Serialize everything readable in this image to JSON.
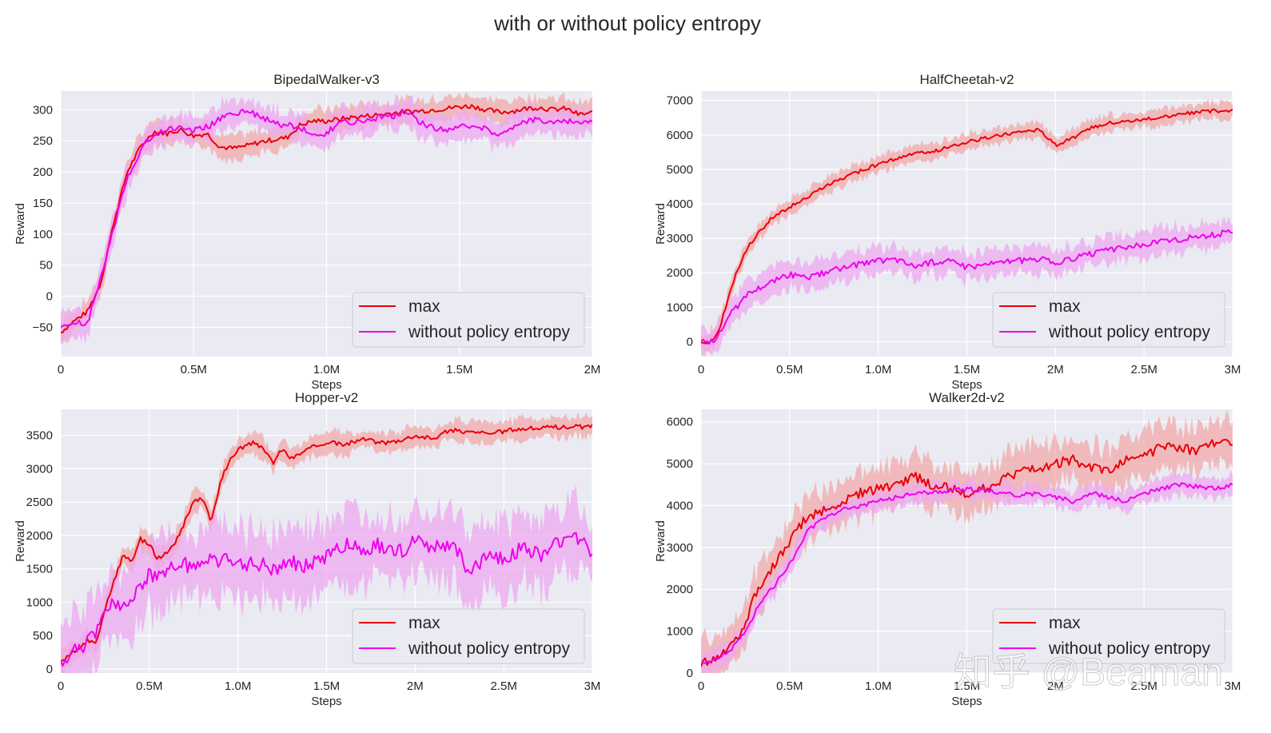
{
  "figure": {
    "suptitle": "with or without policy entropy",
    "watermark": "知乎 @Beaman"
  },
  "colors": {
    "max": "#e8000b",
    "entropy": "#ee00ee",
    "max_band": "#f1a9a9",
    "entropy_band": "#eea8f0",
    "axes_bg": "#eaeaf2",
    "grid": "#ffffff"
  },
  "chart_data": [
    {
      "type": "line",
      "title": "BipedalWalker-v3",
      "xlabel": "Steps",
      "ylabel": "Reward",
      "xlim": [
        0,
        2000000
      ],
      "ylim": [
        -97,
        330
      ],
      "xticks": [
        0,
        500000,
        1000000,
        1500000,
        2000000
      ],
      "xtick_labels": [
        "0",
        "0.5M",
        "1.0M",
        "1.5M",
        "2M"
      ],
      "yticks": [
        -50,
        0,
        50,
        100,
        150,
        200,
        250,
        300
      ],
      "ytick_labels": [
        "−50",
        "0",
        "50",
        "100",
        "150",
        "200",
        "250",
        "300"
      ],
      "legend": {
        "location": "lower right",
        "entries": [
          "max",
          "without policy entropy"
        ]
      },
      "series": [
        {
          "name": "max",
          "color_key": "max",
          "x": [
            0,
            50000,
            100000,
            150000,
            200000,
            250000,
            300000,
            350000,
            400000,
            450000,
            500000,
            550000,
            600000,
            650000,
            700000,
            750000,
            800000,
            850000,
            900000,
            950000,
            1000000,
            1050000,
            1100000,
            1150000,
            1200000,
            1250000,
            1300000,
            1350000,
            1400000,
            1450000,
            1500000,
            1550000,
            1600000,
            1650000,
            1700000,
            1750000,
            1800000,
            1850000,
            1900000,
            1950000,
            2000000
          ],
          "y": [
            -58,
            -40,
            -25,
            20,
            120,
            200,
            240,
            265,
            262,
            268,
            258,
            262,
            240,
            238,
            242,
            248,
            252,
            255,
            275,
            282,
            282,
            285,
            288,
            290,
            292,
            295,
            297,
            298,
            300,
            302,
            305,
            306,
            300,
            296,
            298,
            302,
            304,
            300,
            302,
            292,
            295
          ],
          "spread": 18
        },
        {
          "name": "without policy entropy",
          "color_key": "entropy",
          "x": [
            0,
            50000,
            100000,
            150000,
            200000,
            250000,
            300000,
            350000,
            400000,
            450000,
            500000,
            550000,
            600000,
            650000,
            700000,
            750000,
            800000,
            850000,
            900000,
            950000,
            1000000,
            1050000,
            1100000,
            1150000,
            1200000,
            1250000,
            1300000,
            1350000,
            1400000,
            1450000,
            1500000,
            1550000,
            1600000,
            1650000,
            1700000,
            1750000,
            1800000,
            1850000,
            1900000,
            1950000,
            2000000
          ],
          "y": [
            -52,
            -42,
            -45,
            30,
            110,
            190,
            235,
            262,
            268,
            272,
            268,
            272,
            285,
            295,
            298,
            290,
            278,
            275,
            272,
            258,
            262,
            280,
            278,
            284,
            288,
            290,
            295,
            280,
            272,
            268,
            272,
            275,
            268,
            262,
            272,
            280,
            285,
            280,
            282,
            278,
            283
          ],
          "spread": 22
        }
      ]
    },
    {
      "type": "line",
      "title": "HalfCheetah-v2",
      "xlabel": "Steps",
      "ylabel": "Reward",
      "xlim": [
        0,
        3000000
      ],
      "ylim": [
        -430,
        7270
      ],
      "xticks": [
        0,
        500000,
        1000000,
        1500000,
        2000000,
        2500000,
        3000000
      ],
      "xtick_labels": [
        "0",
        "0.5M",
        "1.0M",
        "1.5M",
        "2M",
        "2.5M",
        "3M"
      ],
      "yticks": [
        0,
        1000,
        2000,
        3000,
        4000,
        5000,
        6000,
        7000
      ],
      "ytick_labels": [
        "0",
        "1000",
        "2000",
        "3000",
        "4000",
        "5000",
        "6000",
        "7000"
      ],
      "legend": {
        "location": "lower right",
        "entries": [
          "max",
          "without policy entropy"
        ]
      },
      "series": [
        {
          "name": "max",
          "color_key": "max",
          "x": [
            0,
            50000,
            100000,
            150000,
            200000,
            250000,
            300000,
            400000,
            500000,
            600000,
            700000,
            800000,
            900000,
            1000000,
            1100000,
            1200000,
            1300000,
            1400000,
            1500000,
            1600000,
            1700000,
            1800000,
            1900000,
            1950000,
            2000000,
            2100000,
            2200000,
            2300000,
            2400000,
            2500000,
            2600000,
            2700000,
            2800000,
            2900000,
            3000000
          ],
          "y": [
            0,
            -50,
            300,
            1200,
            2000,
            2600,
            3000,
            3600,
            3900,
            4200,
            4500,
            4750,
            4950,
            5150,
            5300,
            5450,
            5500,
            5650,
            5800,
            5900,
            6000,
            6100,
            6150,
            5950,
            5700,
            5900,
            6200,
            6350,
            6400,
            6450,
            6500,
            6600,
            6650,
            6700,
            6700
          ],
          "spread": 230
        },
        {
          "name": "without policy entropy",
          "color_key": "entropy",
          "x": [
            0,
            50000,
            100000,
            150000,
            200000,
            250000,
            300000,
            400000,
            500000,
            600000,
            700000,
            800000,
            900000,
            1000000,
            1100000,
            1200000,
            1300000,
            1400000,
            1500000,
            1600000,
            1700000,
            1800000,
            1900000,
            2000000,
            2100000,
            2200000,
            2300000,
            2400000,
            2500000,
            2600000,
            2700000,
            2800000,
            2900000,
            3000000
          ],
          "y": [
            0,
            -50,
            200,
            700,
            1000,
            1300,
            1500,
            1750,
            1950,
            1850,
            2000,
            2150,
            2250,
            2350,
            2400,
            2200,
            2300,
            2350,
            2150,
            2250,
            2300,
            2350,
            2400,
            2300,
            2400,
            2550,
            2650,
            2750,
            2800,
            2900,
            2950,
            3050,
            3100,
            3200
          ],
          "spread": 380
        }
      ]
    },
    {
      "type": "line",
      "title": "Hopper-v2",
      "xlabel": "Steps",
      "ylabel": "Reward",
      "xlim": [
        0,
        3000000
      ],
      "ylim": [
        -60,
        3890
      ],
      "xticks": [
        0,
        500000,
        1000000,
        1500000,
        2000000,
        2500000,
        3000000
      ],
      "xtick_labels": [
        "0",
        "0.5M",
        "1.0M",
        "1.5M",
        "2M",
        "2.5M",
        "3M"
      ],
      "yticks": [
        0,
        500,
        1000,
        1500,
        2000,
        2500,
        3000,
        3500
      ],
      "ytick_labels": [
        "0",
        "500",
        "1000",
        "1500",
        "2000",
        "2500",
        "3000",
        "3500"
      ],
      "legend": {
        "location": "lower right",
        "entries": [
          "max",
          "without policy entropy"
        ]
      },
      "series": [
        {
          "name": "max",
          "color_key": "max",
          "x": [
            0,
            100000,
            150000,
            200000,
            250000,
            300000,
            350000,
            400000,
            450000,
            500000,
            550000,
            600000,
            650000,
            700000,
            750000,
            800000,
            850000,
            900000,
            950000,
            1000000,
            1100000,
            1200000,
            1250000,
            1300000,
            1400000,
            1500000,
            1600000,
            1700000,
            1800000,
            1900000,
            2000000,
            2100000,
            2200000,
            2400000,
            2600000,
            2800000,
            3000000
          ],
          "y": [
            120,
            300,
            420,
            400,
            900,
            1300,
            1700,
            1600,
            1950,
            1850,
            1650,
            1750,
            1900,
            2200,
            2500,
            2550,
            2200,
            2800,
            3100,
            3300,
            3400,
            3100,
            3300,
            3150,
            3300,
            3400,
            3350,
            3450,
            3380,
            3420,
            3500,
            3450,
            3580,
            3520,
            3600,
            3620,
            3630
          ],
          "spread": 150
        },
        {
          "name": "without policy entropy",
          "color_key": "entropy",
          "x": [
            0,
            100000,
            200000,
            250000,
            300000,
            350000,
            400000,
            500000,
            600000,
            700000,
            800000,
            900000,
            1000000,
            1100000,
            1200000,
            1300000,
            1400000,
            1500000,
            1600000,
            1700000,
            1800000,
            1900000,
            2000000,
            2100000,
            2200000,
            2250000,
            2300000,
            2400000,
            2500000,
            2600000,
            2700000,
            2800000,
            2900000,
            3000000
          ],
          "y": [
            120,
            300,
            500,
            900,
            1050,
            900,
            1100,
            1400,
            1500,
            1550,
            1600,
            1650,
            1550,
            1600,
            1500,
            1600,
            1550,
            1700,
            1850,
            1800,
            1850,
            1750,
            1900,
            1800,
            1850,
            1700,
            1400,
            1700,
            1650,
            1800,
            1700,
            1900,
            2000,
            1750
          ],
          "spread": 520
        }
      ]
    },
    {
      "type": "line",
      "title": "Walker2d-v2",
      "xlabel": "Steps",
      "ylabel": "Reward",
      "xlim": [
        0,
        3000000
      ],
      "ylim": [
        0,
        6300
      ],
      "xticks": [
        0,
        500000,
        1000000,
        1500000,
        2000000,
        2500000,
        3000000
      ],
      "xtick_labels": [
        "0",
        "0.5M",
        "1.0M",
        "1.5M",
        "2M",
        "2.5M",
        "3M"
      ],
      "yticks": [
        0,
        1000,
        2000,
        3000,
        4000,
        5000,
        6000
      ],
      "ytick_labels": [
        "0",
        "1000",
        "2000",
        "3000",
        "4000",
        "5000",
        "6000"
      ],
      "legend": {
        "location": "lower right",
        "entries": [
          "max",
          "without policy entropy"
        ]
      },
      "series": [
        {
          "name": "max",
          "color_key": "max",
          "x": [
            0,
            100000,
            150000,
            200000,
            250000,
            300000,
            350000,
            400000,
            450000,
            500000,
            550000,
            600000,
            700000,
            800000,
            900000,
            1000000,
            1100000,
            1200000,
            1300000,
            1400000,
            1500000,
            1600000,
            1700000,
            1800000,
            1900000,
            2000000,
            2100000,
            2200000,
            2300000,
            2400000,
            2500000,
            2600000,
            2700000,
            2800000,
            2900000,
            3000000
          ],
          "y": [
            250,
            400,
            600,
            800,
            1200,
            1800,
            2200,
            2500,
            2800,
            3100,
            3500,
            3700,
            3900,
            4100,
            4300,
            4400,
            4500,
            4700,
            4500,
            4400,
            4300,
            4400,
            4600,
            4800,
            4900,
            5000,
            5100,
            4900,
            4800,
            5100,
            5200,
            5400,
            5400,
            5300,
            5500,
            5550
          ],
          "spread": 520
        },
        {
          "name": "without policy entropy",
          "color_key": "entropy",
          "x": [
            0,
            100000,
            150000,
            200000,
            250000,
            300000,
            350000,
            400000,
            450000,
            500000,
            550000,
            600000,
            700000,
            800000,
            900000,
            1000000,
            1100000,
            1200000,
            1300000,
            1400000,
            1500000,
            1600000,
            1700000,
            1800000,
            1900000,
            2000000,
            2100000,
            2200000,
            2300000,
            2400000,
            2500000,
            2600000,
            2700000,
            2800000,
            2900000,
            3000000
          ],
          "y": [
            250,
            350,
            500,
            700,
            1000,
            1400,
            1800,
            2000,
            2300,
            2600,
            3000,
            3400,
            3700,
            3900,
            4000,
            4100,
            4200,
            4300,
            4300,
            4350,
            4400,
            4350,
            4300,
            4250,
            4300,
            4200,
            4100,
            4300,
            4200,
            4100,
            4300,
            4400,
            4500,
            4450,
            4400,
            4500
          ],
          "spread": 230
        }
      ]
    }
  ]
}
